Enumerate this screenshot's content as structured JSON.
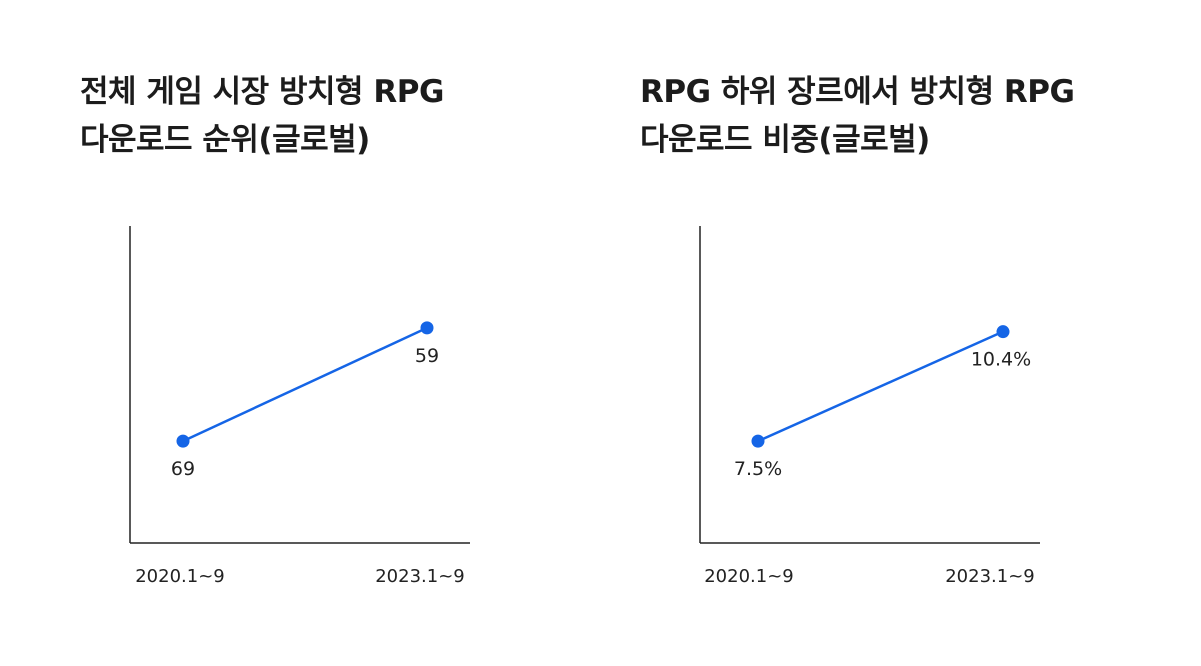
{
  "accent_color": "#1565e6",
  "axis_color": "#222222",
  "chart_data": [
    {
      "type": "line",
      "title_lines": [
        "전체 게임 시장 방치형 RPG",
        "다운로드 순위(글로벌)"
      ],
      "categories": [
        "2020.1~9",
        "2023.1~9"
      ],
      "values": [
        69,
        59
      ],
      "value_labels": [
        "69",
        "59"
      ],
      "xlabel": "",
      "ylabel": "",
      "ylim": [
        50,
        78
      ],
      "y_inverted": true,
      "grid": false,
      "legend": "none"
    },
    {
      "type": "line",
      "title_lines": [
        "RPG 하위 장르에서 방치형 RPG",
        "다운로드 비중(글로벌)"
      ],
      "categories": [
        "2020.1~9",
        "2023.1~9"
      ],
      "values": [
        7.5,
        10.4
      ],
      "value_labels": [
        "7.5%",
        "10.4%"
      ],
      "xlabel": "",
      "ylabel": "",
      "ylim": [
        4.8,
        13.2
      ],
      "y_inverted": false,
      "grid": false,
      "legend": "none"
    }
  ]
}
